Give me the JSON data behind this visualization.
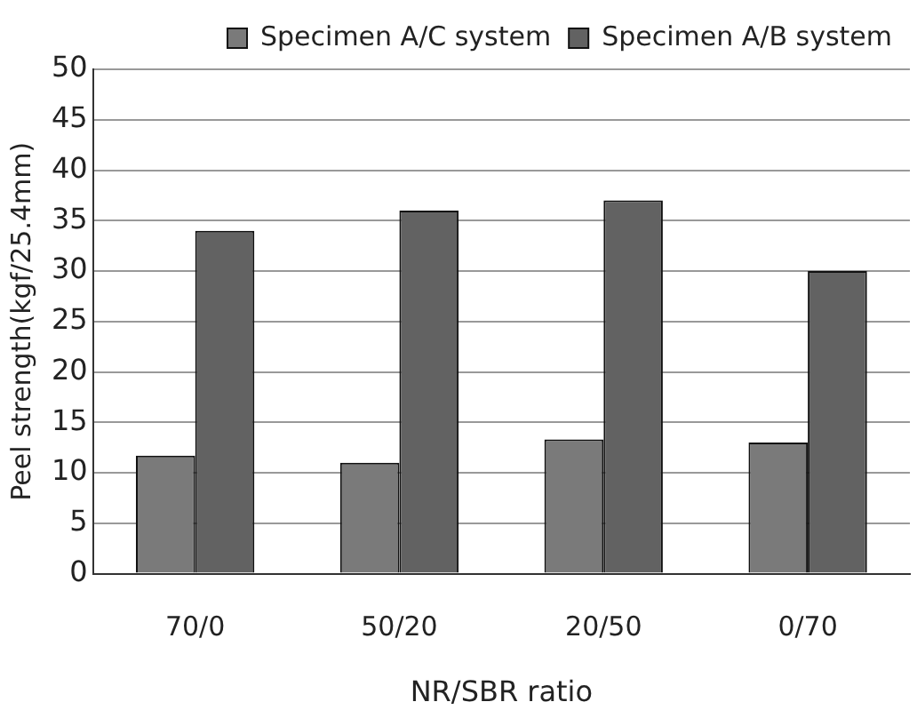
{
  "chart_data": {
    "type": "bar",
    "xlabel": "NR/SBR ratio",
    "ylabel": "Peel strength(kgf/25.4mm)",
    "categories": [
      "70/0",
      "50/20",
      "20/50",
      "0/70"
    ],
    "series": [
      {
        "name": "Specimen A/C system",
        "color": "#7a7a7a",
        "values": [
          11.7,
          11,
          13.3,
          13
        ]
      },
      {
        "name": "Specimen A/B system",
        "color": "#626262",
        "values": [
          34,
          36,
          37,
          30
        ]
      }
    ],
    "ylim": [
      0,
      50
    ],
    "yticks": [
      0,
      5,
      10,
      15,
      20,
      25,
      30,
      35,
      40,
      45,
      50
    ],
    "grid": "y",
    "legend": "top right"
  }
}
